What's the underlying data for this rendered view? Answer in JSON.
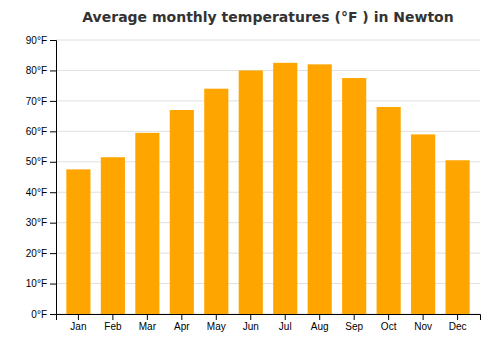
{
  "chart_data": {
    "type": "bar",
    "title": "Average monthly temperatures (°F ) in Newton",
    "categories": [
      "Jan",
      "Feb",
      "Mar",
      "Apr",
      "May",
      "Jun",
      "Jul",
      "Aug",
      "Sep",
      "Oct",
      "Nov",
      "Dec"
    ],
    "values": [
      47.5,
      51.5,
      59.5,
      67.0,
      74.0,
      80.0,
      82.5,
      82.0,
      77.5,
      68.0,
      59.0,
      50.5
    ],
    "color": "#FFA500",
    "ylim": [
      0,
      90
    ],
    "yticks": [
      {
        "value": 0,
        "label": "0°F"
      },
      {
        "value": 10,
        "label": "10°F"
      },
      {
        "value": 20,
        "label": "20°F"
      },
      {
        "value": 30,
        "label": "30°F"
      },
      {
        "value": 40,
        "label": "40°F"
      },
      {
        "value": 50,
        "label": "50°F"
      },
      {
        "value": 60,
        "label": "60°F"
      },
      {
        "value": 70,
        "label": "70°F"
      },
      {
        "value": 80,
        "label": "80°F"
      },
      {
        "value": 90,
        "label": "90°F"
      }
    ],
    "grid": true
  }
}
